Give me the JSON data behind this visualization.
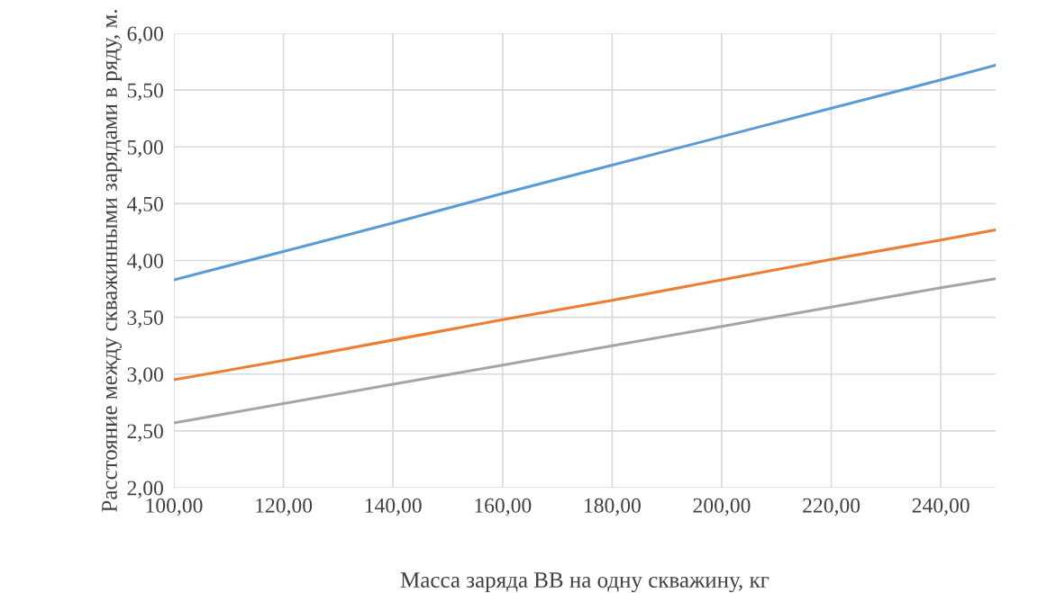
{
  "chart_data": {
    "type": "line",
    "xlabel": "Масса заряда ВВ на одну скважину, кг",
    "ylabel": "Расстояние между скважинными зарядами в ряду, м.",
    "x": [
      100,
      120,
      140,
      160,
      180,
      200,
      220,
      240,
      250
    ],
    "series": [
      {
        "color": "#5b9bd5",
        "values": [
          3.83,
          4.08,
          4.33,
          4.59,
          4.84,
          5.09,
          5.34,
          5.59,
          5.72
        ]
      },
      {
        "color": "#ed7d31",
        "values": [
          2.95,
          3.12,
          3.3,
          3.48,
          3.65,
          3.83,
          4.01,
          4.18,
          4.27
        ]
      },
      {
        "color": "#a5a5a5",
        "values": [
          2.57,
          2.74,
          2.91,
          3.08,
          3.25,
          3.42,
          3.59,
          3.76,
          3.84
        ]
      }
    ],
    "xlim": [
      100,
      250
    ],
    "xticks": [
      {
        "value": 100,
        "label": "100,00"
      },
      {
        "value": 120,
        "label": "120,00"
      },
      {
        "value": 140,
        "label": "140,00"
      },
      {
        "value": 160,
        "label": "160,00"
      },
      {
        "value": 180,
        "label": "180,00"
      },
      {
        "value": 200,
        "label": "200,00"
      },
      {
        "value": 220,
        "label": "220,00"
      },
      {
        "value": 240,
        "label": "240,00"
      }
    ],
    "ylim": [
      2,
      6
    ],
    "yticks": [
      {
        "value": 2,
        "label": "2,00"
      },
      {
        "value": 2.5,
        "label": "2,50"
      },
      {
        "value": 3,
        "label": "3,00"
      },
      {
        "value": 3.5,
        "label": "3,50"
      },
      {
        "value": 4,
        "label": "4,00"
      },
      {
        "value": 4.5,
        "label": "4,50"
      },
      {
        "value": 5,
        "label": "5,00"
      },
      {
        "value": 5.5,
        "label": "5,50"
      },
      {
        "value": 6,
        "label": "6,00"
      }
    ],
    "grid": true,
    "marker": "none",
    "line_style": "solid",
    "legend": false
  }
}
